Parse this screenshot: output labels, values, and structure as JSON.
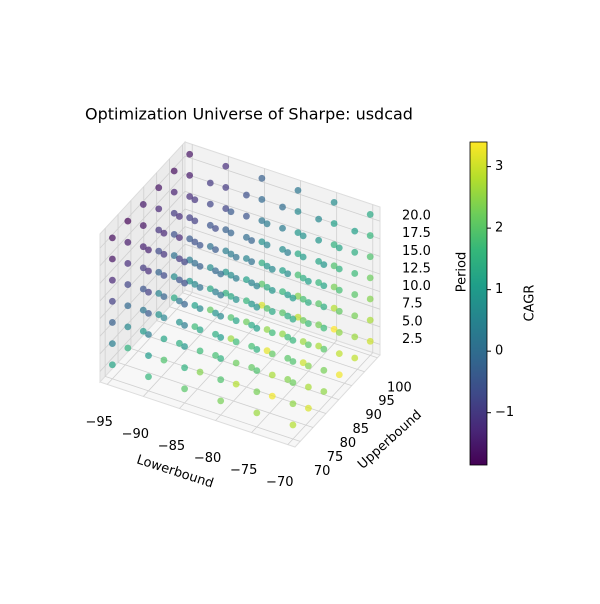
{
  "chart_data": {
    "type": "scatter3d",
    "title": "Optimization Universe of Sharpe: usdcad",
    "xlabel": "Lowerbound",
    "ylabel": "Upperbound",
    "zlabel": "Period",
    "colorbar_label": "CAGR",
    "colormap": "viridis",
    "x": [
      -95,
      -90,
      -85,
      -80,
      -75,
      -70
    ],
    "y": [
      70,
      76,
      82,
      88,
      94,
      100
    ],
    "z": [
      3,
      6,
      9,
      12,
      15,
      18,
      21
    ],
    "values": [
      [
        [
          1.2,
          0.4,
          -0.3,
          -0.9,
          -1.3,
          -1.6,
          -1.7
        ],
        [
          1.5,
          0.6,
          -0.1,
          -0.8,
          -1.2,
          -1.5,
          -1.8
        ],
        [
          1.0,
          0.2,
          -0.5,
          -1.0,
          -1.4,
          -1.6,
          -1.5
        ],
        [
          0.8,
          0.5,
          -0.2,
          -0.7,
          -1.1,
          -1.3,
          -1.6
        ],
        [
          1.3,
          0.7,
          0.1,
          -0.6,
          -1.0,
          -1.4,
          -1.7
        ],
        [
          0.9,
          0.3,
          -0.4,
          -0.9,
          -1.2,
          -1.5,
          -1.6
        ]
      ],
      [
        [
          1.6,
          1.0,
          0.3,
          -0.4,
          -0.9,
          -1.2,
          -1.4
        ],
        [
          1.9,
          1.2,
          0.5,
          -0.2,
          -0.7,
          -1.1,
          -1.3
        ],
        [
          1.4,
          0.8,
          0.2,
          -0.5,
          -1.0,
          -1.3,
          -1.2
        ],
        [
          1.7,
          1.1,
          0.6,
          0.0,
          -0.6,
          -0.9,
          -1.1
        ],
        [
          2.1,
          1.3,
          0.7,
          0.1,
          -0.5,
          -0.8,
          -1.0
        ],
        [
          1.5,
          0.9,
          0.4,
          -0.3,
          -0.8,
          -1.0,
          -1.2
        ]
      ],
      [
        [
          2.0,
          1.5,
          0.9,
          0.3,
          -0.2,
          -0.6,
          -0.8
        ],
        [
          2.4,
          1.7,
          1.2,
          0.6,
          0.1,
          -0.3,
          -0.5
        ],
        [
          1.8,
          1.4,
          0.8,
          0.4,
          -0.1,
          -0.4,
          -0.7
        ],
        [
          2.6,
          1.9,
          1.3,
          0.7,
          0.3,
          -0.2,
          -0.4
        ],
        [
          2.2,
          1.6,
          1.1,
          0.5,
          0.0,
          -0.5,
          -0.6
        ],
        [
          3.1,
          2.0,
          1.4,
          0.8,
          0.2,
          -0.1,
          -0.3
        ]
      ],
      [
        [
          2.3,
          1.9,
          1.5,
          1.0,
          0.6,
          0.2,
          0.0
        ],
        [
          2.8,
          2.2,
          1.7,
          1.2,
          0.8,
          0.4,
          0.1
        ],
        [
          2.1,
          1.8,
          1.3,
          0.9,
          0.5,
          0.1,
          -0.2
        ],
        [
          3.2,
          2.5,
          1.9,
          1.4,
          0.9,
          0.5,
          0.3
        ],
        [
          2.5,
          2.0,
          1.6,
          1.1,
          0.7,
          0.3,
          0.0
        ],
        [
          2.9,
          2.4,
          1.8,
          1.3,
          0.9,
          0.6,
          0.2
        ]
      ],
      [
        [
          2.6,
          2.3,
          1.9,
          1.5,
          1.1,
          0.8,
          0.5
        ],
        [
          3.3,
          2.7,
          2.1,
          1.7,
          1.3,
          0.9,
          0.6
        ],
        [
          2.4,
          2.0,
          1.7,
          1.4,
          1.0,
          0.7,
          0.4
        ],
        [
          3.0,
          2.6,
          2.2,
          1.8,
          1.4,
          1.0,
          0.8
        ],
        [
          2.7,
          2.3,
          2.0,
          1.6,
          1.2,
          0.9,
          0.6
        ],
        [
          3.4,
          2.8,
          2.3,
          1.9,
          1.5,
          1.1,
          0.7
        ]
      ],
      [
        [
          2.8,
          2.5,
          2.2,
          1.9,
          1.6,
          1.3,
          1.0
        ],
        [
          3.1,
          2.7,
          2.4,
          2.0,
          1.7,
          1.4,
          1.1
        ],
        [
          2.5,
          2.3,
          2.0,
          1.7,
          1.4,
          1.2,
          0.9
        ],
        [
          3.3,
          2.9,
          2.5,
          2.1,
          1.8,
          1.5,
          1.2
        ],
        [
          2.9,
          2.6,
          2.3,
          2.0,
          1.7,
          1.4,
          1.1
        ],
        [
          3.0,
          2.7,
          2.4,
          2.2,
          1.9,
          1.6,
          1.3
        ]
      ]
    ],
    "xlim": [
      -96,
      -69
    ],
    "ylim": [
      68,
      101
    ],
    "zlim": [
      1,
      22
    ],
    "clim": [
      -1.85,
      3.4
    ],
    "xticks": [
      {
        "value": -95,
        "label": "−95"
      },
      {
        "value": -90,
        "label": "−90"
      },
      {
        "value": -85,
        "label": "−85"
      },
      {
        "value": -80,
        "label": "−80"
      },
      {
        "value": -75,
        "label": "−75"
      },
      {
        "value": -70,
        "label": "−70"
      }
    ],
    "yticks": [
      70,
      75,
      80,
      85,
      90,
      95,
      100
    ],
    "zticks": [
      2.5,
      {
        "value": 5,
        "label": "5.0"
      },
      7.5,
      {
        "value": 10,
        "label": "10.0"
      },
      12.5,
      {
        "value": 15,
        "label": "15.0"
      },
      17.5,
      {
        "value": 20,
        "label": "20.0"
      }
    ],
    "cticks": [
      {
        "value": -1,
        "label": "−1"
      },
      0,
      1,
      2,
      3
    ],
    "grid": true
  }
}
